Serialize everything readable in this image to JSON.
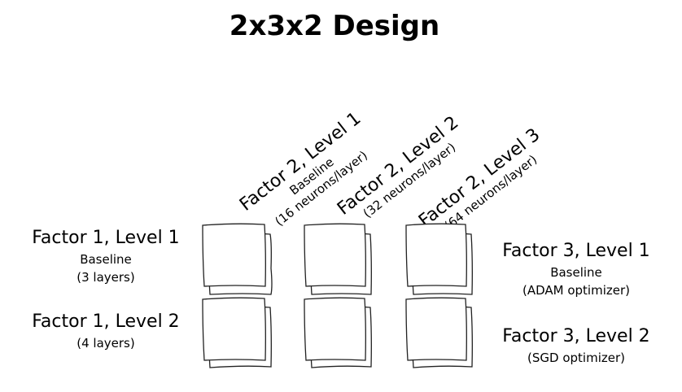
{
  "title": "2x3x2 Design",
  "factor1": {
    "levels": [
      {
        "label": "Factor 1, Level 1",
        "lines": [
          "Baseline",
          "(3 layers)"
        ]
      },
      {
        "label": "Factor 1, Level 2",
        "lines": [
          "(4 layers)"
        ]
      }
    ]
  },
  "factor2": {
    "levels": [
      {
        "label": "Factor 2, Level 1",
        "lines": [
          "Baseline",
          "(16 neurons/layer)"
        ]
      },
      {
        "label": "Factor 2, Level 2",
        "lines": [
          "(32 neurons/layer)"
        ]
      },
      {
        "label": "Factor 2, Level 3",
        "lines": [
          "(64 neurons/layer)"
        ]
      }
    ]
  },
  "factor3": {
    "levels": [
      {
        "label": "Factor 3, Level 1",
        "lines": [
          "Baseline",
          "(ADAM optimizer)"
        ]
      },
      {
        "label": "Factor 3, Level 2",
        "lines": [
          "(SGD optimizer)"
        ]
      }
    ]
  }
}
